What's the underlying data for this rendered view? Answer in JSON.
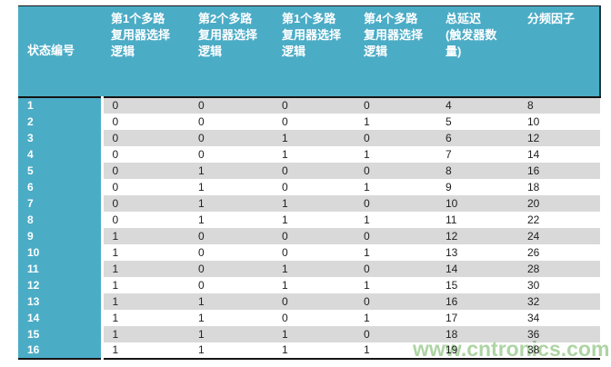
{
  "colors": {
    "page_bg": "#ffffff",
    "header_teal": "#4BACC6",
    "header_text": "#ffffff",
    "row_gray": "#D9D9D9",
    "row_white": "#ffffff",
    "body_text": "#1f1f1f",
    "border_dark": "#141414",
    "watermark_green": "#aed4a4"
  },
  "table": {
    "headers": [
      "状态编号",
      "第1个多路\n复用器选择\n逻辑",
      "第2个多路\n复用器选择\n逻辑",
      "第1个多路\n复用器选择\n逻辑",
      "第4个多路\n复用器选择\n逻辑",
      "总延迟\n(触发器数\n量)",
      "分频因子"
    ],
    "rows": [
      {
        "state": "1",
        "mux1": "0",
        "mux2": "0",
        "mux3": "0",
        "mux4": "0",
        "delay": "4",
        "factor": "8"
      },
      {
        "state": "2",
        "mux1": "0",
        "mux2": "0",
        "mux3": "0",
        "mux4": "1",
        "delay": "5",
        "factor": "10"
      },
      {
        "state": "3",
        "mux1": "0",
        "mux2": "0",
        "mux3": "1",
        "mux4": "0",
        "delay": "6",
        "factor": "12"
      },
      {
        "state": "4",
        "mux1": "0",
        "mux2": "0",
        "mux3": "1",
        "mux4": "1",
        "delay": "7",
        "factor": "14"
      },
      {
        "state": "5",
        "mux1": "0",
        "mux2": "1",
        "mux3": "0",
        "mux4": "0",
        "delay": "8",
        "factor": "16"
      },
      {
        "state": "6",
        "mux1": "0",
        "mux2": "1",
        "mux3": "0",
        "mux4": "1",
        "delay": "9",
        "factor": "18"
      },
      {
        "state": "7",
        "mux1": "0",
        "mux2": "1",
        "mux3": "1",
        "mux4": "0",
        "delay": "10",
        "factor": "20"
      },
      {
        "state": "8",
        "mux1": "0",
        "mux2": "1",
        "mux3": "1",
        "mux4": "1",
        "delay": "11",
        "factor": "22"
      },
      {
        "state": "9",
        "mux1": "1",
        "mux2": "0",
        "mux3": "0",
        "mux4": "0",
        "delay": "12",
        "factor": "24"
      },
      {
        "state": "10",
        "mux1": "1",
        "mux2": "0",
        "mux3": "0",
        "mux4": "1",
        "delay": "13",
        "factor": "26"
      },
      {
        "state": "11",
        "mux1": "1",
        "mux2": "0",
        "mux3": "1",
        "mux4": "0",
        "delay": "14",
        "factor": "28"
      },
      {
        "state": "12",
        "mux1": "1",
        "mux2": "0",
        "mux3": "1",
        "mux4": "1",
        "delay": "15",
        "factor": "30"
      },
      {
        "state": "13",
        "mux1": "1",
        "mux2": "1",
        "mux3": "0",
        "mux4": "0",
        "delay": "16",
        "factor": "32"
      },
      {
        "state": "14",
        "mux1": "1",
        "mux2": "1",
        "mux3": "0",
        "mux4": "1",
        "delay": "17",
        "factor": "34"
      },
      {
        "state": "15",
        "mux1": "1",
        "mux2": "1",
        "mux3": "1",
        "mux4": "0",
        "delay": "18",
        "factor": "36"
      },
      {
        "state": "16",
        "mux1": "1",
        "mux2": "1",
        "mux3": "1",
        "mux4": "1",
        "delay": "19",
        "factor": "38"
      }
    ]
  },
  "watermark": {
    "text": "www.cntronics.com"
  }
}
